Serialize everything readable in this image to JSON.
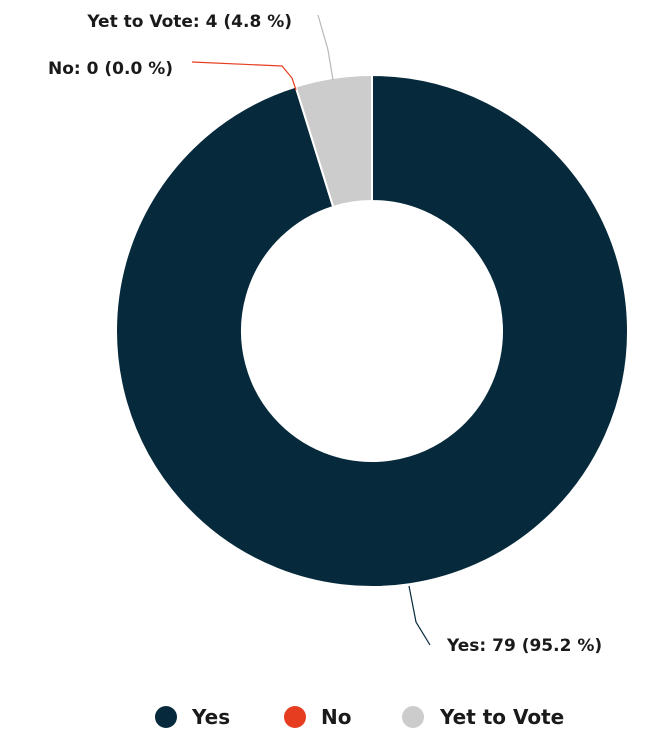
{
  "chart_data": {
    "type": "pie",
    "donut": true,
    "legend_position": "bottom",
    "slices": [
      {
        "name": "Yes",
        "value": 79,
        "percent": 95.2,
        "color": "#062a3c",
        "label": "Yes: 79 (95.2 %)"
      },
      {
        "name": "No",
        "value": 0,
        "percent": 0.0,
        "color": "#e63d20",
        "label": "No: 0 (0.0 %)"
      },
      {
        "name": "Yet to Vote",
        "value": 4,
        "percent": 4.8,
        "color": "#cccccc",
        "label": "Yet to Vote: 4 (4.8 %)"
      }
    ]
  }
}
